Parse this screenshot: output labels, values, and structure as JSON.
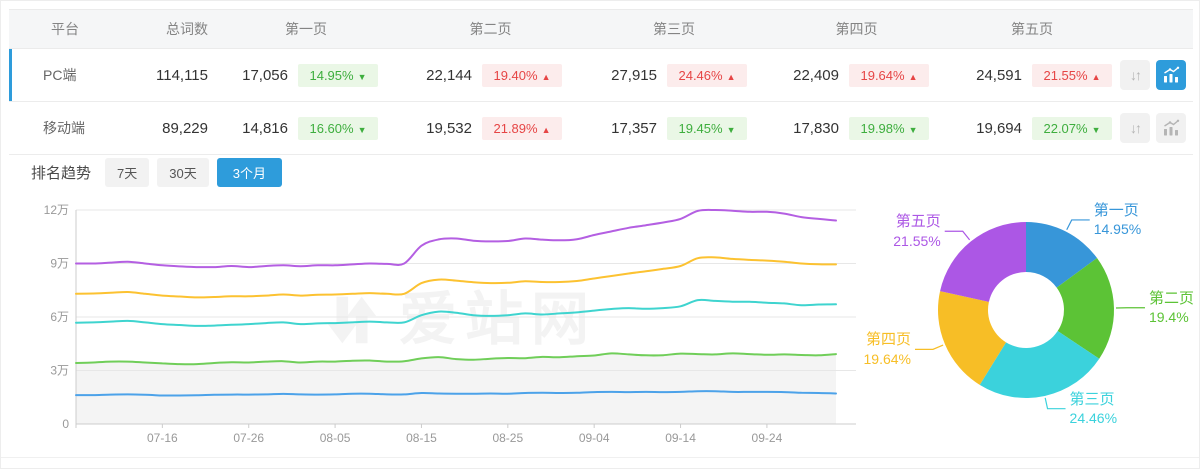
{
  "accent": {
    "blue": "#2e9cdb",
    "badge_up_red": "#e64545",
    "badge_down_green": "#3eae3e"
  },
  "icons": {
    "sort_glyph": "↓↑"
  },
  "watermark": {
    "text": "爱站网"
  },
  "table": {
    "headers": [
      "平台",
      "总词数",
      "第一页",
      "第二页",
      "第三页",
      "第四页",
      "第五页"
    ],
    "rows": [
      {
        "platform": "PC端",
        "total": "114,115",
        "selected": true,
        "chart_active": true,
        "pages": [
          {
            "value": "17,056",
            "pct": "14.95%",
            "dir": "down"
          },
          {
            "value": "22,144",
            "pct": "19.40%",
            "dir": "up"
          },
          {
            "value": "27,915",
            "pct": "24.46%",
            "dir": "up"
          },
          {
            "value": "22,409",
            "pct": "19.64%",
            "dir": "up"
          },
          {
            "value": "24,591",
            "pct": "21.55%",
            "dir": "up"
          }
        ]
      },
      {
        "platform": "移动端",
        "total": "89,229",
        "selected": false,
        "chart_active": false,
        "pages": [
          {
            "value": "14,816",
            "pct": "16.60%",
            "dir": "down"
          },
          {
            "value": "19,532",
            "pct": "21.89%",
            "dir": "up"
          },
          {
            "value": "17,357",
            "pct": "19.45%",
            "dir": "down"
          },
          {
            "value": "17,830",
            "pct": "19.98%",
            "dir": "down"
          },
          {
            "value": "19,694",
            "pct": "22.07%",
            "dir": "down"
          }
        ]
      }
    ]
  },
  "trend": {
    "title": "排名趋势",
    "tabs": [
      {
        "label": "7天",
        "active": false
      },
      {
        "label": "30天",
        "active": false
      },
      {
        "label": "3个月",
        "active": true
      }
    ]
  },
  "chart_data": [
    {
      "type": "line",
      "title": "排名趋势(3个月)",
      "x_tick_labels": [
        "07-16",
        "07-26",
        "08-05",
        "08-15",
        "08-25",
        "09-04",
        "09-14",
        "09-24"
      ],
      "tick_indices": [
        5,
        10,
        15,
        20,
        25,
        30,
        35,
        40
      ],
      "y_tick_labels": [
        "0",
        "3万",
        "6万",
        "9万",
        "12万"
      ],
      "ylim_wan": [
        0,
        12
      ],
      "grid": true,
      "legend": "none",
      "area_series": "green",
      "area_color": "rgba(0,0,0,0.045)",
      "series": [
        {
          "name": "blue",
          "color": "#4ca2e9",
          "values_wan": [
            1.62,
            1.62,
            1.65,
            1.66,
            1.64,
            1.6,
            1.6,
            1.61,
            1.64,
            1.65,
            1.65,
            1.66,
            1.69,
            1.66,
            1.65,
            1.66,
            1.7,
            1.7,
            1.66,
            1.66,
            1.74,
            1.71,
            1.7,
            1.7,
            1.71,
            1.7,
            1.74,
            1.75,
            1.74,
            1.75,
            1.79,
            1.8,
            1.79,
            1.8,
            1.79,
            1.8,
            1.84,
            1.84,
            1.8,
            1.8,
            1.8,
            1.79,
            1.75,
            1.74,
            1.71
          ]
        },
        {
          "name": "green",
          "color": "#70ce59",
          "values_wan": [
            3.42,
            3.45,
            3.5,
            3.5,
            3.45,
            3.4,
            3.36,
            3.36,
            3.42,
            3.46,
            3.45,
            3.5,
            3.52,
            3.45,
            3.5,
            3.5,
            3.55,
            3.56,
            3.5,
            3.52,
            3.68,
            3.75,
            3.64,
            3.6,
            3.66,
            3.7,
            3.69,
            3.76,
            3.74,
            3.8,
            3.84,
            3.96,
            3.9,
            3.85,
            3.86,
            3.95,
            3.92,
            3.9,
            3.96,
            3.92,
            3.88,
            3.9,
            3.87,
            3.85,
            3.92
          ]
        },
        {
          "name": "cyan",
          "color": "#3fd4cf",
          "values_wan": [
            5.68,
            5.7,
            5.74,
            5.78,
            5.7,
            5.6,
            5.55,
            5.5,
            5.52,
            5.56,
            5.6,
            5.66,
            5.7,
            5.6,
            5.64,
            5.66,
            5.7,
            5.74,
            5.7,
            5.7,
            6.1,
            6.3,
            6.24,
            6.1,
            6.06,
            6.1,
            6.2,
            6.14,
            6.2,
            6.26,
            6.36,
            6.45,
            6.5,
            6.46,
            6.5,
            6.6,
            6.95,
            6.9,
            6.86,
            6.85,
            6.8,
            6.76,
            6.66,
            6.7,
            6.71
          ]
        },
        {
          "name": "yellow",
          "color": "#fcc231",
          "values_wan": [
            7.3,
            7.32,
            7.36,
            7.4,
            7.3,
            7.2,
            7.15,
            7.1,
            7.12,
            7.16,
            7.16,
            7.2,
            7.26,
            7.2,
            7.25,
            7.26,
            7.3,
            7.34,
            7.3,
            7.3,
            7.9,
            8.1,
            8.04,
            7.95,
            7.9,
            7.92,
            8.0,
            7.96,
            7.96,
            8.02,
            8.16,
            8.3,
            8.44,
            8.56,
            8.7,
            8.86,
            9.3,
            9.34,
            9.26,
            9.2,
            9.16,
            9.1,
            9.0,
            8.96,
            8.95
          ]
        },
        {
          "name": "purple",
          "color": "#b45fe2",
          "values_wan": [
            9.0,
            9.0,
            9.05,
            9.1,
            9.0,
            8.9,
            8.84,
            8.8,
            8.8,
            8.86,
            8.8,
            8.86,
            8.9,
            8.85,
            8.9,
            8.9,
            8.95,
            9.0,
            8.98,
            9.0,
            10.0,
            10.35,
            10.4,
            10.28,
            10.24,
            10.26,
            10.4,
            10.34,
            10.3,
            10.36,
            10.6,
            10.8,
            11.0,
            11.15,
            11.3,
            11.5,
            11.95,
            12.0,
            11.96,
            11.9,
            11.9,
            11.8,
            11.6,
            11.5,
            11.41
          ]
        }
      ]
    },
    {
      "type": "pie",
      "donut": true,
      "slices": [
        {
          "label": "第一页",
          "value_pct": 14.95,
          "display": "14.95%",
          "color": "#3796d9"
        },
        {
          "label": "第二页",
          "value_pct": 19.4,
          "display": "19.4%",
          "color": "#5cc336"
        },
        {
          "label": "第三页",
          "value_pct": 24.46,
          "display": "24.46%",
          "color": "#3bd2dc"
        },
        {
          "label": "第四页",
          "value_pct": 19.64,
          "display": "19.64%",
          "color": "#f7be26"
        },
        {
          "label": "第五页",
          "value_pct": 21.55,
          "display": "21.55%",
          "color": "#ac57e5"
        }
      ]
    }
  ]
}
